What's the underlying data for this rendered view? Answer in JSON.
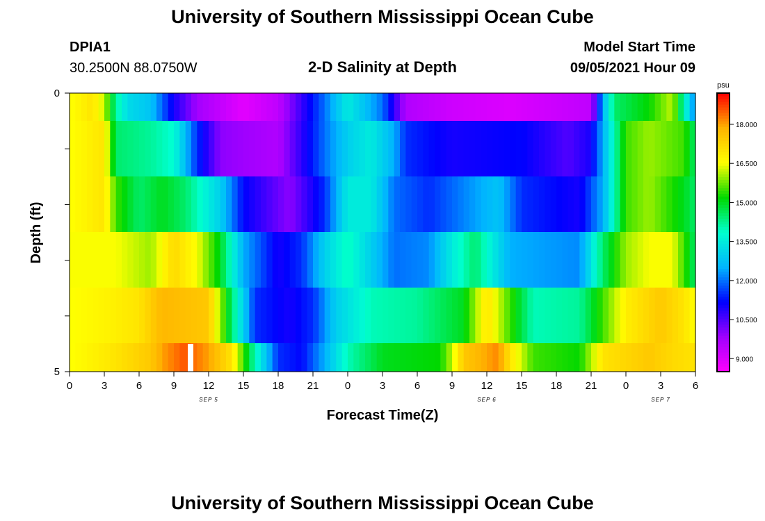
{
  "header": {
    "title": "University of Southern Mississippi Ocean Cube",
    "station_id": "DPIA1",
    "station_location": "30.2500N  88.0750W",
    "chart_title": "2-D Salinity at Depth",
    "model_start_label": "Model Start Time",
    "model_start_value": "09/05/2021 Hour 09"
  },
  "footer": {
    "title": "University of Southern Mississippi Ocean Cube"
  },
  "colors": {
    "ramp": [
      "#ff00ff",
      "#a000ff",
      "#0000ff",
      "#00b4ff",
      "#00ffd0",
      "#00d800",
      "#ffff00",
      "#ffb400",
      "#ff0000"
    ]
  },
  "chart_data": {
    "type": "heatmap",
    "title": "2-D Salinity at Depth",
    "xlabel": "Forecast Time(Z)",
    "ylabel": "Depth (ft)",
    "x_ticks": [
      "0",
      "3",
      "6",
      "9",
      "12",
      "15",
      "18",
      "21",
      "0",
      "3",
      "6",
      "9",
      "12",
      "15",
      "18",
      "21",
      "0",
      "3",
      "6"
    ],
    "x_range_hours": [
      0,
      54
    ],
    "date_labels": [
      {
        "text": "SEP 5",
        "at_hour": 12
      },
      {
        "text": "SEP 6",
        "at_hour": 36
      },
      {
        "text": "SEP 7",
        "at_hour": 51
      }
    ],
    "y_ticks": [
      "0",
      "5"
    ],
    "y_range": [
      0,
      5
    ],
    "colorbar": {
      "unit": "psu",
      "min": 8.5,
      "max": 19.2,
      "ticks": [
        "9.000",
        "10.500",
        "12.000",
        "13.500",
        "15.000",
        "16.500",
        "18.000"
      ],
      "tick_values": [
        9.0,
        10.5,
        12.0,
        13.5,
        15.0,
        16.5,
        18.0
      ]
    },
    "rows_depth_ft": [
      0,
      1,
      2,
      3,
      4,
      5
    ],
    "row_keyframes": [
      [
        [
          0,
          16.5
        ],
        [
          2,
          17.0
        ],
        [
          3,
          16.2
        ],
        [
          4,
          14.2
        ],
        [
          5,
          13.2
        ],
        [
          7,
          12.8
        ],
        [
          9,
          11.0
        ],
        [
          11,
          9.8
        ],
        [
          15,
          8.9
        ],
        [
          18,
          9.4
        ],
        [
          22,
          12.0
        ],
        [
          24,
          13.5
        ],
        [
          27,
          12.0
        ],
        [
          29,
          9.6
        ],
        [
          33,
          9.2
        ],
        [
          38,
          9.0
        ],
        [
          45,
          9.4
        ],
        [
          46,
          12.5
        ],
        [
          47,
          14.5
        ],
        [
          50,
          15.2
        ],
        [
          52,
          16.2
        ],
        [
          53,
          14.0
        ],
        [
          54,
          12.0
        ]
      ],
      [
        [
          0,
          16.5
        ],
        [
          3,
          17.0
        ],
        [
          4,
          14.5
        ],
        [
          7,
          14.2
        ],
        [
          9,
          13.8
        ],
        [
          11,
          11.5
        ],
        [
          13,
          10.0
        ],
        [
          18,
          9.6
        ],
        [
          22,
          12.0
        ],
        [
          24,
          13.0
        ],
        [
          26,
          13.5
        ],
        [
          28,
          12.5
        ],
        [
          29,
          11.5
        ],
        [
          33,
          11.0
        ],
        [
          39,
          11.2
        ],
        [
          43,
          10.5
        ],
        [
          45,
          11.0
        ],
        [
          46,
          12.5
        ],
        [
          48,
          15.5
        ],
        [
          50,
          16.0
        ],
        [
          53,
          15.5
        ],
        [
          54,
          14.5
        ]
      ],
      [
        [
          0,
          16.5
        ],
        [
          3,
          17.0
        ],
        [
          4,
          15.5
        ],
        [
          6,
          14.5
        ],
        [
          8,
          15.0
        ],
        [
          10,
          14.5
        ],
        [
          13,
          13.0
        ],
        [
          15,
          11.2
        ],
        [
          19,
          10.0
        ],
        [
          22,
          11.5
        ],
        [
          24,
          13.5
        ],
        [
          26,
          13.5
        ],
        [
          28,
          12.0
        ],
        [
          31,
          11.5
        ],
        [
          37,
          12.8
        ],
        [
          39,
          11.5
        ],
        [
          44,
          11.0
        ],
        [
          46,
          12.5
        ],
        [
          48,
          15.5
        ],
        [
          50,
          16.0
        ],
        [
          53,
          15.0
        ],
        [
          54,
          14.5
        ]
      ],
      [
        [
          0,
          16.5
        ],
        [
          4,
          16.5
        ],
        [
          7,
          16.0
        ],
        [
          9,
          17.2
        ],
        [
          11,
          16.5
        ],
        [
          13,
          15.0
        ],
        [
          15,
          12.5
        ],
        [
          18,
          11.0
        ],
        [
          20,
          11.5
        ],
        [
          22,
          13.0
        ],
        [
          24,
          14.0
        ],
        [
          26,
          13.0
        ],
        [
          28,
          12.0
        ],
        [
          31,
          12.2
        ],
        [
          33,
          13.5
        ],
        [
          35,
          14.5
        ],
        [
          38,
          12.5
        ],
        [
          44,
          12.2
        ],
        [
          46,
          14.5
        ],
        [
          48,
          16.0
        ],
        [
          50,
          16.5
        ],
        [
          52,
          16.5
        ],
        [
          53,
          15.5
        ],
        [
          54,
          14.5
        ]
      ],
      [
        [
          0,
          16.5
        ],
        [
          4,
          16.8
        ],
        [
          6,
          17.0
        ],
        [
          8,
          17.8
        ],
        [
          12,
          17.5
        ],
        [
          14,
          14.5
        ],
        [
          16,
          11.5
        ],
        [
          19,
          11.0
        ],
        [
          21,
          11.5
        ],
        [
          23,
          13.0
        ],
        [
          26,
          14.0
        ],
        [
          30,
          14.2
        ],
        [
          34,
          15.0
        ],
        [
          36,
          17.0
        ],
        [
          38,
          15.5
        ],
        [
          40,
          14.0
        ],
        [
          44,
          14.2
        ],
        [
          46,
          15.5
        ],
        [
          48,
          16.8
        ],
        [
          51,
          17.5
        ],
        [
          53,
          17.0
        ],
        [
          54,
          16.5
        ]
      ],
      [
        [
          0,
          16.5
        ],
        [
          4,
          17.0
        ],
        [
          7,
          17.5
        ],
        [
          8,
          18.0
        ],
        [
          10,
          18.6
        ],
        [
          12,
          18.0
        ],
        [
          14,
          17.0
        ],
        [
          16,
          14.0
        ],
        [
          18,
          11.5
        ],
        [
          20,
          11.2
        ],
        [
          22,
          12.5
        ],
        [
          24,
          14.0
        ],
        [
          27,
          15.0
        ],
        [
          32,
          15.2
        ],
        [
          33,
          16.2
        ],
        [
          34,
          17.5
        ],
        [
          37,
          18.2
        ],
        [
          38,
          17.0
        ],
        [
          40,
          15.5
        ],
        [
          44,
          15.2
        ],
        [
          46,
          17.0
        ],
        [
          50,
          17.5
        ],
        [
          52,
          17.2
        ],
        [
          54,
          17.0
        ]
      ]
    ],
    "grid": false,
    "legend": "right"
  }
}
